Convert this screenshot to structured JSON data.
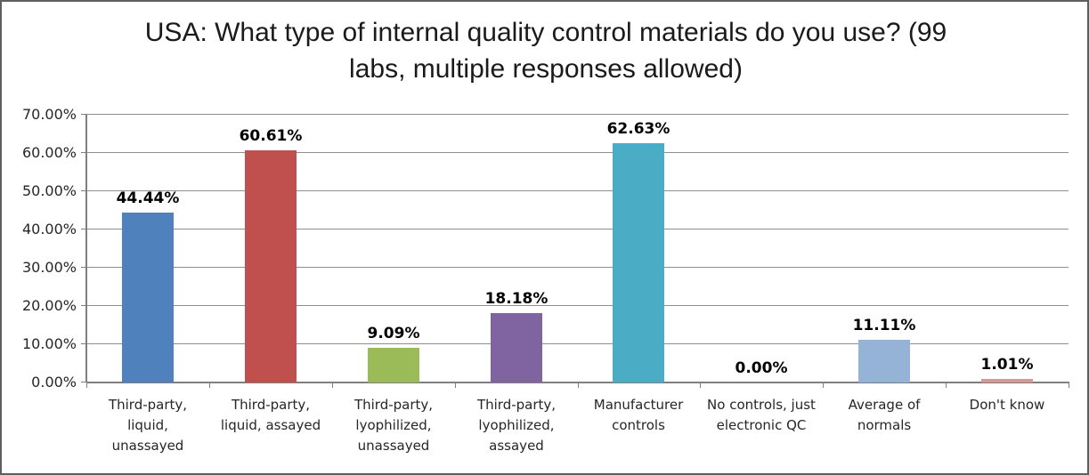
{
  "chart_data": {
    "type": "bar",
    "title": "USA: What type of internal quality control materials do you use? (99 labs, multiple responses allowed)",
    "categories": [
      "Third-party, liquid, unassayed",
      "Third-party, liquid, assayed",
      "Third-party, lyophilized, unassayed",
      "Third-party, lyophilized, assayed",
      "Manufacturer controls",
      "No controls, just electronic QC",
      "Average of normals",
      "Don't know"
    ],
    "values": [
      44.44,
      60.61,
      9.09,
      18.18,
      62.63,
      0.0,
      11.11,
      1.01
    ],
    "data_labels": [
      "44.44%",
      "60.61%",
      "9.09%",
      "18.18%",
      "62.63%",
      "0.00%",
      "11.11%",
      "1.01%"
    ],
    "bar_colors": [
      "#4f81bd",
      "#c0504d",
      "#9bbb59",
      "#8064a2",
      "#4bacc6",
      null,
      "#95b3d7",
      "#d99694"
    ],
    "xlabel": "",
    "ylabel": "",
    "y_axis": {
      "min": 0,
      "max": 70,
      "step": 10,
      "tick_labels": [
        "0.00%",
        "10.00%",
        "20.00%",
        "30.00%",
        "40.00%",
        "50.00%",
        "60.00%",
        "70.00%"
      ]
    },
    "grid": true,
    "legend": "none",
    "gridline_color": "#8f8f8f",
    "axis_color": "#7f7f7f"
  }
}
